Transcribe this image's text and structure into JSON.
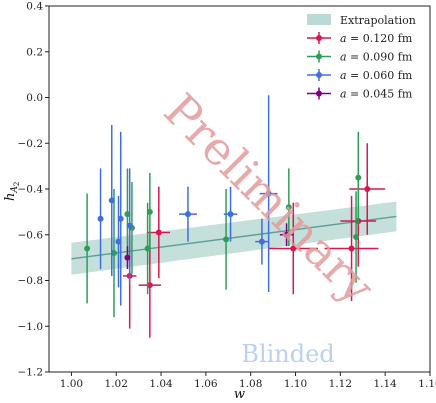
{
  "chart_data": {
    "type": "scatter",
    "title": "",
    "xlabel": "w",
    "ylabel": "h",
    "ylabel_subscript": "A",
    "ylabel_subsubscript": "2",
    "xlim": [
      0.99,
      1.16
    ],
    "ylim": [
      -1.2,
      0.4
    ],
    "xticks": [
      1.0,
      1.02,
      1.04,
      1.06,
      1.08,
      1.1,
      1.12,
      1.14,
      1.16
    ],
    "xtick_labels": [
      "1.00",
      "1.02",
      "1.04",
      "1.06",
      "1.08",
      "1.10",
      "1.12",
      "1.14",
      "1.16"
    ],
    "yticks": [
      -1.2,
      -1.0,
      -0.8,
      -0.6,
      -0.4,
      -0.2,
      0.0,
      0.2,
      0.4
    ],
    "ytick_labels": [
      "−1.2",
      "−1.0",
      "−0.8",
      "−0.6",
      "−0.4",
      "−0.2",
      "0.0",
      "0.2",
      "0.4"
    ],
    "grid": false,
    "legend_position": "top-right",
    "band": {
      "name": "Extrapolation",
      "color": "#9fc9c3",
      "line_color": "#5e9e96",
      "x": [
        1.0,
        1.145
      ],
      "center": [
        -0.705,
        -0.52
      ],
      "lower": [
        -0.775,
        -0.585
      ],
      "upper": [
        -0.635,
        -0.455
      ]
    },
    "series": [
      {
        "name": "a = 0.120 fm",
        "label_prefix": "a",
        "label_value": "= 0.120 fm",
        "color": "#d8174f",
        "points": [
          {
            "x": 1.026,
            "y": -0.78,
            "xerr": 0.003,
            "yerr": 0.23
          },
          {
            "x": 1.035,
            "y": -0.82,
            "xerr": 0.005,
            "yerr": 0.23
          },
          {
            "x": 1.039,
            "y": -0.59,
            "xerr": 0.005,
            "yerr": 0.2
          },
          {
            "x": 1.099,
            "y": -0.66,
            "xerr": 0.011,
            "yerr": 0.2
          },
          {
            "x": 1.125,
            "y": -0.66,
            "xerr": 0.012,
            "yerr": 0.23
          },
          {
            "x": 1.128,
            "y": -0.54,
            "xerr": 0.008,
            "yerr": 0.2
          },
          {
            "x": 1.132,
            "y": -0.4,
            "xerr": 0.008,
            "yerr": 0.2
          }
        ]
      },
      {
        "name": "a = 0.090 fm",
        "label_prefix": "a",
        "label_value": "= 0.090 fm",
        "color": "#2e9e57",
        "points": [
          {
            "x": 1.007,
            "y": -0.66,
            "xerr": 0.0,
            "yerr": 0.24
          },
          {
            "x": 1.019,
            "y": -0.68,
            "xerr": 0.0,
            "yerr": 0.28
          },
          {
            "x": 1.025,
            "y": -0.51,
            "xerr": 0.0,
            "yerr": 0.2
          },
          {
            "x": 1.027,
            "y": -0.57,
            "xerr": 0.0,
            "yerr": 0.2
          },
          {
            "x": 1.034,
            "y": -0.66,
            "xerr": 0.0,
            "yerr": 0.2
          },
          {
            "x": 1.035,
            "y": -0.5,
            "xerr": 0.0,
            "yerr": 0.17
          },
          {
            "x": 1.069,
            "y": -0.62,
            "xerr": 0.0,
            "yerr": 0.22
          },
          {
            "x": 1.097,
            "y": -0.48,
            "xerr": 0.0,
            "yerr": 0.17
          },
          {
            "x": 1.128,
            "y": -0.35,
            "xerr": 0.0,
            "yerr": 0.2
          },
          {
            "x": 1.127,
            "y": -0.61,
            "xerr": 0.0,
            "yerr": 0.2
          }
        ]
      },
      {
        "name": "a = 0.060 fm",
        "label_prefix": "a",
        "label_value": "= 0.060 fm",
        "color": "#3f6ee0",
        "points": [
          {
            "x": 1.013,
            "y": -0.53,
            "xerr": 0.0,
            "yerr": 0.22
          },
          {
            "x": 1.018,
            "y": -0.45,
            "xerr": 0.0,
            "yerr": 0.33
          },
          {
            "x": 1.021,
            "y": -0.63,
            "xerr": 0.0,
            "yerr": 0.2
          },
          {
            "x": 1.022,
            "y": -0.53,
            "xerr": 0.0,
            "yerr": 0.38
          },
          {
            "x": 1.026,
            "y": -0.56,
            "xerr": 0.0,
            "yerr": 0.25
          },
          {
            "x": 1.052,
            "y": -0.51,
            "xerr": 0.004,
            "yerr": 0.12
          },
          {
            "x": 1.071,
            "y": -0.51,
            "xerr": 0.003,
            "yerr": 0.12
          },
          {
            "x": 1.085,
            "y": -0.63,
            "xerr": 0.003,
            "yerr": 0.1
          },
          {
            "x": 1.088,
            "y": -0.42,
            "xerr": 0.004,
            "yerr": 0.43
          }
        ]
      },
      {
        "name": "a = 0.045 fm",
        "label_prefix": "a",
        "label_value": "= 0.045 fm",
        "color": "#800080",
        "points": [
          {
            "x": 1.025,
            "y": -0.7,
            "xerr": 0.0,
            "yerr": 0.05
          },
          {
            "x": 1.096,
            "y": -0.6,
            "xerr": 0.003,
            "yerr": 0.05
          }
        ]
      }
    ],
    "watermarks": [
      {
        "text": "Preliminary",
        "color": "#e39a9a"
      },
      {
        "text": "Blinded",
        "color": "#bcd0f2"
      }
    ]
  }
}
